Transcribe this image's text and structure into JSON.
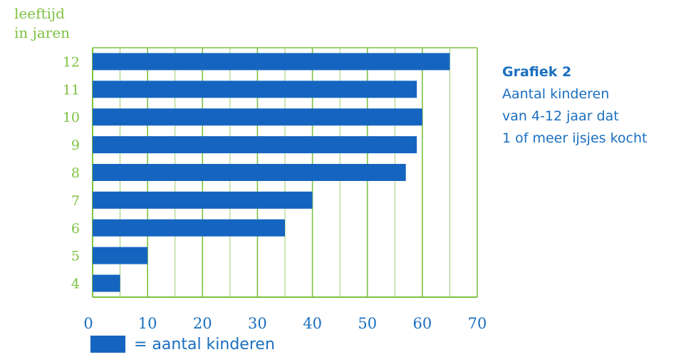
{
  "chart_data": {
    "type": "bar",
    "orientation": "horizontal",
    "ylabel": [
      "leeftijd",
      "in jaren"
    ],
    "categories": [
      "12",
      "11",
      "10",
      "9",
      "8",
      "7",
      "6",
      "5",
      "4"
    ],
    "series": [
      {
        "name": "= aantal kinderen",
        "values": [
          65,
          59,
          60,
          59,
          57,
          40,
          35,
          10,
          5
        ]
      }
    ],
    "xticks": [
      "0",
      "10",
      "20",
      "30",
      "40",
      "50",
      "60",
      "70"
    ],
    "xlim": [
      0,
      70
    ],
    "grid": true,
    "colors": {
      "bar": "#1565c0",
      "grid": "#7dc242",
      "axis_text": "#1a6fbf",
      "category_text": "#7dc242"
    }
  },
  "caption": {
    "title": "Grafiek 2",
    "lines": [
      "Aantal kinderen",
      "van 4-12 jaar dat",
      "1 of meer ijsjes kocht"
    ]
  }
}
